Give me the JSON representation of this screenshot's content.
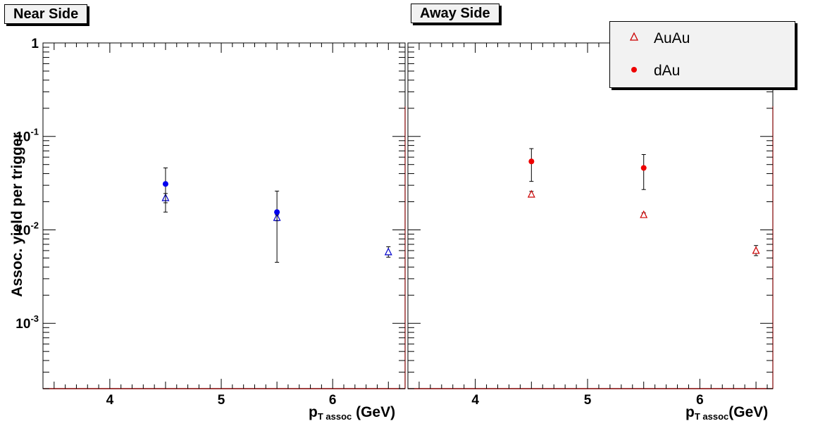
{
  "chart_data": [
    {
      "type": "scatter",
      "title": "Near Side",
      "xlabel_main": "p",
      "xlabel_sub": "T assoc",
      "xlabel_unit": "(GeV)",
      "ylabel": "Assoc. yield per trigger",
      "xlim": [
        3.4,
        6.65
      ],
      "ylim": [
        0.0002,
        1
      ],
      "yscale": "log",
      "x_ticks": [
        "4",
        "5",
        "6"
      ],
      "y_ticks": [
        {
          "value": 1,
          "base": "1",
          "exp": ""
        },
        {
          "value": 0.1,
          "base": "10",
          "exp": "-1"
        },
        {
          "value": 0.01,
          "base": "10",
          "exp": "-2"
        },
        {
          "value": 0.001,
          "base": "10",
          "exp": "-3"
        }
      ],
      "series": [
        {
          "name": "AuAu",
          "marker": "open-triangle",
          "color": "#0000cc",
          "x": [
            4.5,
            5.5,
            6.5
          ],
          "y": [
            0.022,
            0.0135,
            0.0058
          ],
          "ylow": [
            0.0195,
            0.0125,
            0.0051
          ],
          "yhigh": [
            0.0245,
            0.0145,
            0.0066
          ]
        },
        {
          "name": "dAu",
          "marker": "filled-circle",
          "color": "#0000ee",
          "x": [
            4.5,
            5.5
          ],
          "y": [
            0.031,
            0.0155
          ],
          "ylow": [
            0.0155,
            0.0045
          ],
          "yhigh": [
            0.046,
            0.026
          ]
        }
      ]
    },
    {
      "type": "scatter",
      "title": "Away Side",
      "xlabel_main": "p",
      "xlabel_sub": "T assoc",
      "xlabel_unit": "(GeV)",
      "ylabel": "",
      "xlim": [
        3.4,
        6.65
      ],
      "ylim": [
        0.0002,
        1
      ],
      "yscale": "log",
      "x_ticks": [
        "4",
        "5",
        "6"
      ],
      "y_ticks": [],
      "series": [
        {
          "name": "AuAu",
          "marker": "open-triangle",
          "color": "#cc0000",
          "x": [
            4.5,
            5.5,
            6.5
          ],
          "y": [
            0.024,
            0.0145,
            0.006
          ],
          "ylow": [
            0.0225,
            0.0138,
            0.0053
          ],
          "yhigh": [
            0.0258,
            0.0152,
            0.0068
          ]
        },
        {
          "name": "dAu",
          "marker": "filled-circle",
          "color": "#ee0000",
          "x": [
            4.5,
            5.5
          ],
          "y": [
            0.054,
            0.046
          ],
          "ylow": [
            0.033,
            0.027
          ],
          "yhigh": [
            0.074,
            0.064
          ]
        }
      ]
    }
  ],
  "legend": {
    "items": [
      {
        "label": "AuAu",
        "marker": "open-triangle",
        "color": "#cc0000"
      },
      {
        "label": "dAu",
        "marker": "filled-circle",
        "color": "#ee0000"
      }
    ]
  }
}
